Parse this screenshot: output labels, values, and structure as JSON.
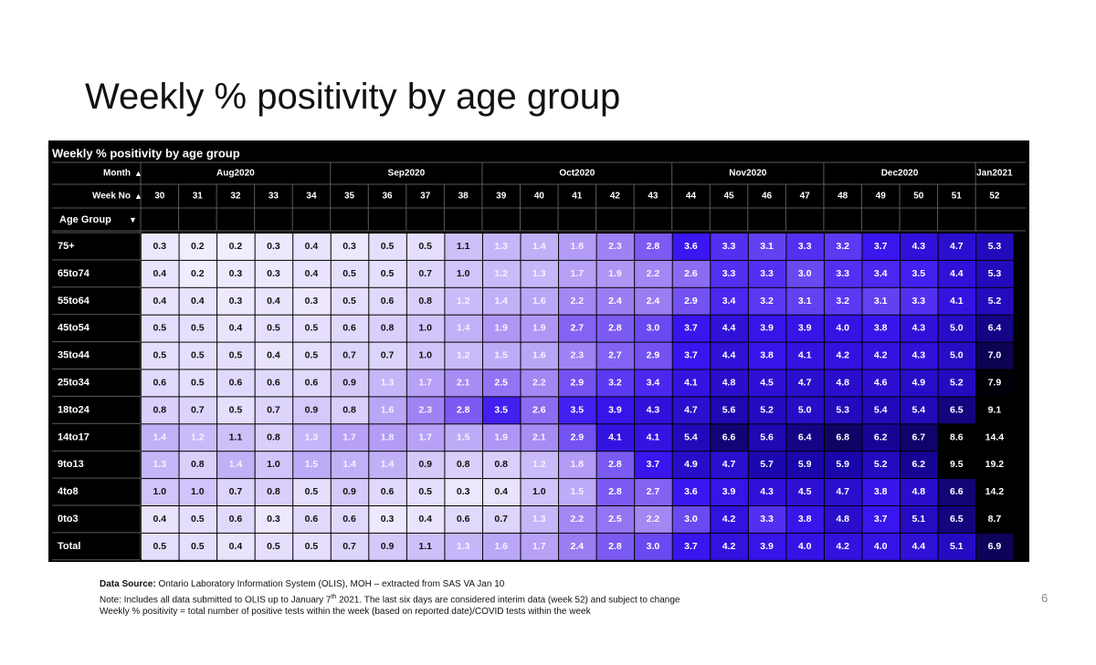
{
  "slide": {
    "title": "Weekly % positivity by age group",
    "page_number": "6"
  },
  "footnotes": {
    "source_label": "Data Source:",
    "source_text": " Ontario Laboratory Information System (OLIS), MOH – extracted from SAS VA Jan 10",
    "note_before": "Note:  Includes all data submitted to OLIS up to January 7",
    "note_sup": "th",
    "note_after": " 2021. The last six days are considered interim data (week 52) and subject to change",
    "definition": "Weekly % positivity = total number of positive tests within the week (based on reported date)/COVID tests within the week"
  },
  "chart_data": {
    "type": "heatmap",
    "title": "Weekly % positivity by age group",
    "header_labels": {
      "month": "Month",
      "week": "Week No",
      "age": "Age Group"
    },
    "sort_glyphs": {
      "month": "▲",
      "week": "▲",
      "age": "▼"
    },
    "months": [
      {
        "label": "Aug2020",
        "span": 5
      },
      {
        "label": "Sep2020",
        "span": 4
      },
      {
        "label": "Oct2020",
        "span": 5
      },
      {
        "label": "Nov2020",
        "span": 4
      },
      {
        "label": "Dec2020",
        "span": 4
      },
      {
        "label": "Jan2021",
        "span": 1
      }
    ],
    "weeks": [
      "30",
      "31",
      "32",
      "33",
      "34",
      "35",
      "36",
      "37",
      "38",
      "39",
      "40",
      "41",
      "42",
      "43",
      "44",
      "45",
      "46",
      "47",
      "48",
      "49",
      "50",
      "51",
      "52"
    ],
    "rows": [
      "75+",
      "65to74",
      "55to64",
      "45to54",
      "35to44",
      "25to34",
      "18to24",
      "14to17",
      "9to13",
      "4to8",
      "0to3",
      "Total"
    ],
    "values": [
      [
        0.3,
        0.2,
        0.2,
        0.3,
        0.4,
        0.3,
        0.5,
        0.5,
        1.1,
        1.3,
        1.4,
        1.8,
        2.3,
        2.8,
        3.6,
        3.3,
        3.1,
        3.3,
        3.2,
        3.7,
        4.3,
        4.7,
        5.3
      ],
      [
        0.4,
        0.2,
        0.3,
        0.3,
        0.4,
        0.5,
        0.5,
        0.7,
        1.0,
        1.2,
        1.3,
        1.7,
        1.9,
        2.2,
        2.6,
        3.3,
        3.3,
        3.0,
        3.3,
        3.4,
        3.5,
        4.4,
        5.3
      ],
      [
        0.4,
        0.4,
        0.3,
        0.4,
        0.3,
        0.5,
        0.6,
        0.8,
        1.2,
        1.4,
        1.6,
        2.2,
        2.4,
        2.4,
        2.9,
        3.4,
        3.2,
        3.1,
        3.2,
        3.1,
        3.3,
        4.1,
        5.2
      ],
      [
        0.5,
        0.5,
        0.4,
        0.5,
        0.5,
        0.6,
        0.8,
        1.0,
        1.4,
        1.9,
        1.9,
        2.7,
        2.8,
        3.0,
        3.7,
        4.4,
        3.9,
        3.9,
        4.0,
        3.8,
        4.3,
        5.0,
        6.4
      ],
      [
        0.5,
        0.5,
        0.5,
        0.4,
        0.5,
        0.7,
        0.7,
        1.0,
        1.2,
        1.5,
        1.6,
        2.3,
        2.7,
        2.9,
        3.7,
        4.4,
        3.8,
        4.1,
        4.2,
        4.2,
        4.3,
        5.0,
        7.0
      ],
      [
        0.6,
        0.5,
        0.6,
        0.6,
        0.6,
        0.9,
        1.3,
        1.7,
        2.1,
        2.5,
        2.2,
        2.9,
        3.2,
        3.4,
        4.1,
        4.8,
        4.5,
        4.7,
        4.8,
        4.6,
        4.9,
        5.2,
        7.9
      ],
      [
        0.8,
        0.7,
        0.5,
        0.7,
        0.9,
        0.8,
        1.6,
        2.3,
        2.8,
        3.5,
        2.6,
        3.5,
        3.9,
        4.3,
        4.7,
        5.6,
        5.2,
        5.0,
        5.3,
        5.4,
        5.4,
        6.5,
        9.1
      ],
      [
        1.4,
        1.2,
        1.1,
        0.8,
        1.3,
        1.7,
        1.8,
        1.7,
        1.5,
        1.9,
        2.1,
        2.9,
        4.1,
        4.1,
        5.4,
        6.6,
        5.6,
        6.4,
        6.8,
        6.2,
        6.7,
        8.6,
        14.4
      ],
      [
        1.3,
        0.8,
        1.4,
        1.0,
        1.5,
        1.4,
        1.4,
        0.9,
        0.8,
        0.8,
        1.2,
        1.8,
        2.8,
        3.7,
        4.9,
        4.7,
        5.7,
        5.9,
        5.9,
        5.2,
        6.2,
        9.5,
        19.2
      ],
      [
        1.0,
        1.0,
        0.7,
        0.8,
        0.5,
        0.9,
        0.6,
        0.5,
        0.3,
        0.4,
        1.0,
        1.5,
        2.8,
        2.7,
        3.6,
        3.9,
        4.3,
        4.5,
        4.7,
        3.8,
        4.8,
        6.6,
        14.2
      ],
      [
        0.4,
        0.5,
        0.6,
        0.3,
        0.6,
        0.6,
        0.3,
        0.4,
        0.6,
        0.7,
        1.3,
        2.2,
        2.5,
        2.2,
        3.0,
        4.2,
        3.3,
        3.8,
        4.8,
        3.7,
        5.1,
        6.5,
        8.7
      ],
      [
        0.5,
        0.5,
        0.4,
        0.5,
        0.5,
        0.7,
        0.9,
        1.1,
        1.3,
        1.6,
        1.7,
        2.4,
        2.8,
        3.0,
        3.7,
        4.2,
        3.9,
        4.0,
        4.2,
        4.0,
        4.4,
        5.1,
        6.9
      ]
    ],
    "colors": {
      "header_bg": "#000000",
      "header_text": "#ffffff",
      "gridline": "#5a5a5a",
      "low": "#f1edfe",
      "mid": "#9b7df2",
      "high": "#3b16f0",
      "very_high": "#1806a6",
      "max": "#000000"
    }
  }
}
